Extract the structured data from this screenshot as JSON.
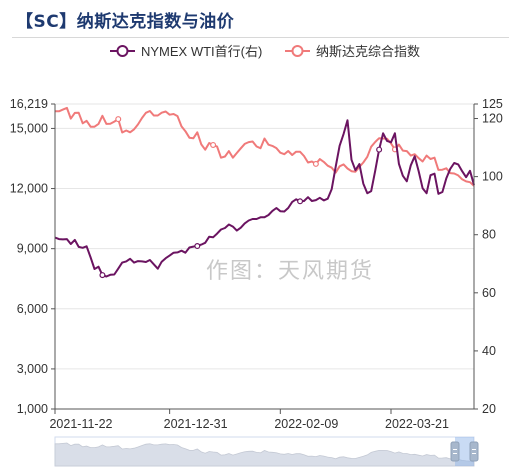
{
  "header": {
    "title": "【SC】纳斯达克指数与油价"
  },
  "watermark": "作图：天风期货",
  "chart_data": {
    "type": "line",
    "title": "【SC】纳斯达克指数与油价",
    "x_tick_labels": [
      "2021-11-22",
      "2021-12-31",
      "2022-02-09",
      "2022-03-21"
    ],
    "left_axis": {
      "ticks": [
        "1,000",
        "3,000",
        "6,000",
        "9,000",
        "12,000",
        "15,000",
        "16,219"
      ],
      "range": [
        1000,
        16219
      ]
    },
    "right_axis": {
      "ticks": [
        "20",
        "40",
        "60",
        "80",
        "100",
        "120",
        "125"
      ],
      "range": [
        20,
        125
      ]
    },
    "grid": true,
    "legend_position": "top",
    "series": [
      {
        "name": "NYMEX WTI首行(右)",
        "axis": "right",
        "color": "#6b1461",
        "values": [
          79.0,
          78.5,
          78.4,
          78.5,
          76.8,
          78.2,
          75.8,
          75.5,
          76.0,
          72.2,
          68.2,
          69.0,
          66.1,
          65.6,
          66.2,
          66.3,
          68.3,
          70.4,
          70.8,
          71.7,
          70.4,
          70.9,
          70.8,
          70.6,
          71.3,
          69.8,
          68.3,
          70.7,
          71.9,
          72.8,
          73.8,
          73.9,
          74.5,
          73.8,
          75.6,
          75.9,
          76.1,
          76.6,
          77.2,
          79.3,
          79.1,
          80.4,
          81.8,
          82.3,
          83.5,
          82.8,
          81.4,
          82.4,
          83.9,
          84.9,
          85.4,
          85.4,
          86.0,
          86.0,
          86.8,
          88.2,
          89.2,
          88.1,
          88.0,
          89.2,
          91.3,
          92.2,
          91.5,
          91.6,
          92.9,
          91.6,
          91.9,
          92.7,
          91.8,
          92.4,
          95.7,
          103.4,
          110.6,
          114.7,
          119.4,
          105.8,
          102.2,
          104.3,
          97.6,
          94.3,
          95.0,
          102.0,
          109.3,
          114.9,
          112.3,
          111.8,
          114.9,
          104.4,
          100.3,
          98.4,
          103.9,
          107.0,
          101.8,
          96.0,
          94.3,
          100.5,
          101.0,
          94.1,
          94.7,
          99.4,
          102.7,
          104.7,
          104.2,
          101.9,
          99.8,
          102.0,
          97.1
        ]
      },
      {
        "name": "纳斯达克综合指数",
        "axis": "left",
        "color": "#f07a7a",
        "values": [
          15854,
          15856,
          15940,
          16025,
          15491,
          15774,
          15782,
          15254,
          15381,
          15085,
          15086,
          15226,
          15630,
          15225,
          15237,
          15342,
          15465,
          14796,
          14899,
          14807,
          14955,
          15200,
          15521,
          15781,
          15871,
          15645,
          15645,
          15786,
          15845,
          15685,
          15722,
          15613,
          15100,
          14863,
          14536,
          14507,
          14805,
          14201,
          13939,
          14273,
          14174,
          14091,
          13537,
          13599,
          13869,
          13539,
          13772,
          14009,
          14230,
          14320,
          14347,
          14098,
          14013,
          14496,
          14187,
          14129,
          14016,
          13791,
          13713,
          13876,
          13675,
          13837,
          13834,
          13624,
          13301,
          13350,
          13230,
          13470,
          13330,
          13141,
          13040,
          12794,
          13111,
          13204,
          13002,
          12866,
          12843,
          13082,
          13299,
          13586,
          14089,
          14322,
          14510,
          14499,
          14489,
          14253,
          13955,
          14193,
          13896,
          13871,
          13642,
          13712,
          13516,
          13352,
          13646,
          13475,
          13540,
          12929,
          12941,
          13012,
          12771,
          12752,
          12657,
          12461,
          12355,
          12317,
          12131
        ]
      }
    ]
  }
}
